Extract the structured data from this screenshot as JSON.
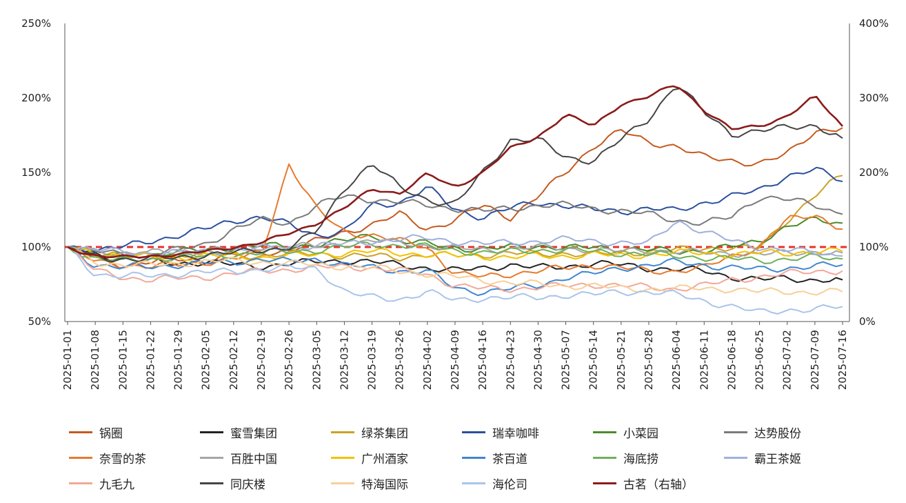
{
  "chart_data": {
    "type": "line",
    "x_ticks": [
      "2025-01-01",
      "2025-01-08",
      "2025-01-15",
      "2025-01-22",
      "2025-01-29",
      "2025-02-05",
      "2025-02-12",
      "2025-02-19",
      "2025-02-26",
      "2025-03-05",
      "2025-03-12",
      "2025-03-19",
      "2025-03-26",
      "2025-04-02",
      "2025-04-09",
      "2025-04-16",
      "2025-04-23",
      "2025-04-30",
      "2025-05-07",
      "2025-05-14",
      "2025-05-21",
      "2025-05-28",
      "2025-06-04",
      "2025-06-11",
      "2025-06-18",
      "2025-06-25",
      "2025-07-02",
      "2025-07-09",
      "2025-07-16"
    ],
    "y_left_ticks": [
      "250%",
      "200%",
      "150%",
      "100%",
      "50%"
    ],
    "y_right_ticks": [
      "400%",
      "300%",
      "200%",
      "100%",
      "0%"
    ],
    "ylim_left": [
      50,
      250
    ],
    "ylim_right": [
      0,
      400
    ],
    "reference_line": {
      "value": 100,
      "axis": "left",
      "color": "#e8322b",
      "style": "dashed"
    },
    "legend_placement": "bottom",
    "series": [
      {
        "name": "锅圈",
        "color": "#c55a1f",
        "axis": "left",
        "values": [
          100,
          93,
          88,
          90,
          92,
          91,
          95,
          96,
          98,
          104,
          110,
          115,
          122,
          112,
          118,
          128,
          120,
          134,
          150,
          168,
          178,
          170,
          168,
          160,
          158,
          156,
          162,
          178,
          180
        ]
      },
      {
        "name": "蜜雪集团",
        "color": "#222222",
        "axis": "left",
        "values": [
          100,
          95,
          92,
          90,
          89,
          90,
          88,
          87,
          89,
          90,
          91,
          90,
          88,
          86,
          84,
          86,
          88,
          86,
          87,
          89,
          88,
          86,
          85,
          84,
          80,
          78,
          79,
          78,
          78
        ]
      },
      {
        "name": "绿茶集团",
        "color": "#c9a227",
        "axis": "left",
        "values": [
          100,
          97,
          95,
          94,
          95,
          96,
          95,
          94,
          95,
          96,
          94,
          94,
          93,
          95,
          94,
          95,
          96,
          95,
          96,
          95,
          96,
          97,
          98,
          99,
          100,
          99,
          118,
          135,
          148
        ]
      },
      {
        "name": "瑞幸咖啡",
        "color": "#2a4f9e",
        "axis": "left",
        "values": [
          100,
          98,
          100,
          104,
          108,
          112,
          118,
          120,
          115,
          108,
          110,
          128,
          130,
          140,
          125,
          120,
          126,
          130,
          128,
          125,
          124,
          126,
          124,
          130,
          134,
          138,
          148,
          152,
          144
        ]
      },
      {
        "name": "小菜园",
        "color": "#4b8b2b",
        "axis": "left",
        "values": [
          100,
          96,
          94,
          95,
          97,
          98,
          100,
          101,
          100,
          102,
          104,
          108,
          104,
          102,
          100,
          98,
          100,
          101,
          99,
          100,
          99,
          98,
          97,
          98,
          100,
          104,
          114,
          118,
          116
        ]
      },
      {
        "name": "达势股份",
        "color": "#7a7a7a",
        "axis": "left",
        "values": [
          100,
          97,
          95,
          96,
          98,
          102,
          112,
          118,
          116,
          128,
          134,
          132,
          130,
          128,
          126,
          124,
          126,
          128,
          128,
          126,
          124,
          122,
          118,
          116,
          120,
          134,
          132,
          128,
          122
        ]
      },
      {
        "name": "奈雪的茶",
        "color": "#e67a2e",
        "axis": "left",
        "values": [
          100,
          90,
          88,
          87,
          88,
          90,
          92,
          95,
          156,
          125,
          110,
          108,
          104,
          100,
          82,
          80,
          82,
          84,
          86,
          88,
          86,
          84,
          84,
          86,
          94,
          100,
          118,
          122,
          112
        ]
      },
      {
        "name": "百胜中国",
        "color": "#a6a6a6",
        "axis": "left",
        "values": [
          100,
          97,
          96,
          96,
          97,
          98,
          99,
          100,
          101,
          100,
          102,
          104,
          103,
          101,
          99,
          98,
          99,
          100,
          99,
          98,
          97,
          98,
          97,
          96,
          96,
          95,
          96,
          97,
          96
        ]
      },
      {
        "name": "广州酒家",
        "color": "#f2c200",
        "axis": "left",
        "values": [
          100,
          96,
          94,
          93,
          93,
          94,
          94,
          93,
          94,
          95,
          96,
          97,
          96,
          95,
          94,
          94,
          93,
          94,
          94,
          95,
          94,
          95,
          96,
          96,
          95,
          96,
          96,
          97,
          97
        ]
      },
      {
        "name": "茶百道",
        "color": "#3f86d0",
        "axis": "left",
        "values": [
          100,
          88,
          86,
          87,
          88,
          89,
          90,
          92,
          90,
          92,
          88,
          86,
          84,
          84,
          72,
          70,
          72,
          74,
          80,
          82,
          86,
          88,
          90,
          88,
          86,
          85,
          86,
          87,
          88
        ]
      },
      {
        "name": "海底捞",
        "color": "#6fb05a",
        "axis": "left",
        "values": [
          100,
          92,
          91,
          92,
          93,
          94,
          95,
          96,
          97,
          98,
          100,
          102,
          101,
          100,
          98,
          96,
          97,
          98,
          98,
          97,
          96,
          95,
          94,
          93,
          92,
          91,
          92,
          93,
          92
        ]
      },
      {
        "name": "霸王茶姬",
        "color": "#9fb0db",
        "axis": "left",
        "values": [
          100,
          98,
          97,
          96,
          96,
          97,
          98,
          99,
          100,
          101,
          102,
          104,
          105,
          106,
          104,
          102,
          103,
          104,
          105,
          104,
          103,
          102,
          118,
          110,
          104,
          100,
          98,
          96,
          94
        ]
      },
      {
        "name": "九毛九",
        "color": "#f2a898",
        "axis": "left",
        "values": [
          100,
          84,
          80,
          78,
          79,
          80,
          82,
          84,
          85,
          86,
          87,
          86,
          84,
          82,
          74,
          72,
          72,
          73,
          74,
          75,
          74,
          73,
          72,
          74,
          78,
          80,
          82,
          84,
          84
        ]
      },
      {
        "name": "同庆楼",
        "color": "#444444",
        "axis": "left",
        "values": [
          100,
          93,
          92,
          92,
          93,
          95,
          96,
          98,
          100,
          110,
          140,
          156,
          140,
          132,
          128,
          150,
          172,
          172,
          160,
          158,
          172,
          186,
          210,
          190,
          176,
          178,
          180,
          182,
          173
        ]
      },
      {
        "name": "特海国际",
        "color": "#f7cf98",
        "axis": "left",
        "values": [
          100,
          90,
          88,
          88,
          89,
          90,
          91,
          90,
          89,
          88,
          87,
          86,
          84,
          82,
          80,
          78,
          76,
          75,
          74,
          74,
          72,
          72,
          72,
          72,
          72,
          70,
          70,
          70,
          70
        ]
      },
      {
        "name": "海伦司",
        "color": "#a9c4ea",
        "axis": "left",
        "values": [
          100,
          82,
          80,
          81,
          82,
          83,
          84,
          85,
          86,
          86,
          70,
          66,
          65,
          70,
          64,
          66,
          66,
          66,
          68,
          68,
          70,
          70,
          68,
          64,
          60,
          56,
          58,
          58,
          60
        ]
      },
      {
        "name": "古茗（右轴）",
        "color": "#8b1a1a",
        "axis": "right",
        "values": [
          100,
          88,
          86,
          88,
          90,
          94,
          100,
          106,
          118,
          132,
          152,
          178,
          172,
          198,
          180,
          200,
          232,
          248,
          278,
          262,
          292,
          302,
          318,
          284,
          258,
          262,
          276,
          302,
          262
        ]
      }
    ]
  }
}
